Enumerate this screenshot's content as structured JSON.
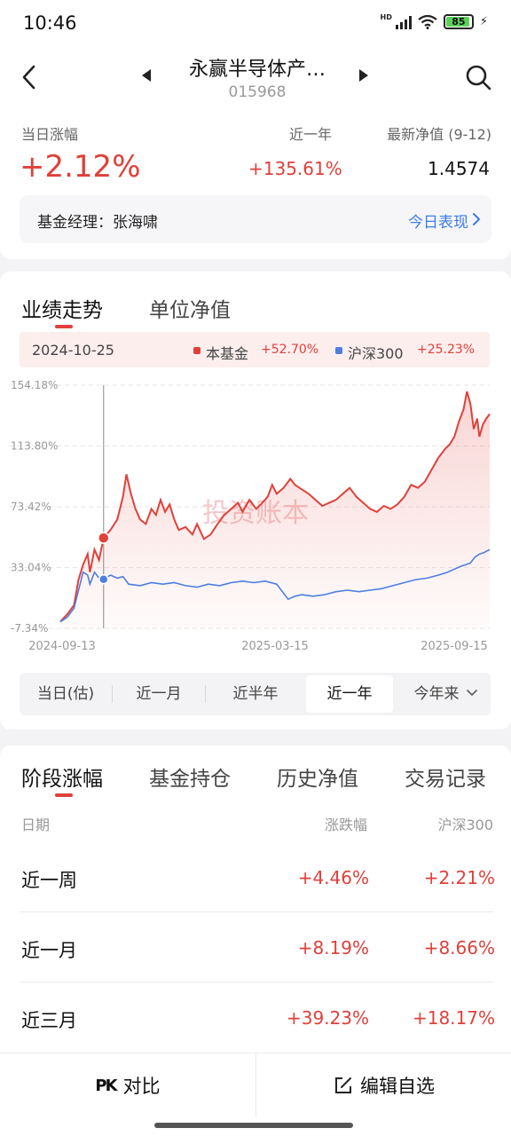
{
  "status_bar": {
    "time": "10:46",
    "battery": "85",
    "network": "HD"
  },
  "header": {
    "fund_name": "永赢半导体产…",
    "fund_code": "015968"
  },
  "summary": {
    "day_change_label": "当日涨幅",
    "day_change_value": "+2.12%",
    "year_label": "近一年",
    "year_value": "+135.61%",
    "nav_label": "最新净值 (9-12)",
    "nav_value": "1.4574"
  },
  "manager": {
    "label": "基金经理：张海啸",
    "link": "今日表现"
  },
  "chart_tabs": [
    {
      "label": "业绩走势",
      "active": true
    },
    {
      "label": "单位净值",
      "active": false
    }
  ],
  "legend": {
    "date": "2024-10-25",
    "items": [
      {
        "name": "本基金",
        "value": "+52.70%",
        "color": "#e0403a"
      },
      {
        "name": "沪深300",
        "value": "+25.23%",
        "color": "#4c7fe0"
      }
    ]
  },
  "watermark": "投资账本",
  "chart_data": {
    "type": "line",
    "y_ticks": [
      "154.18%",
      "113.80%",
      "73.42%",
      "33.04%",
      "-7.34%"
    ],
    "y_tick_values": [
      154.18,
      113.8,
      73.42,
      33.04,
      -7.34
    ],
    "x_ticks": [
      "2024-09-13",
      "2025-03-15",
      "2025-09-15"
    ],
    "ylim": [
      -7.34,
      154.18
    ],
    "grid": true,
    "cursor_date": "2024-10-25",
    "series": [
      {
        "name": "本基金",
        "color": "#e0403a",
        "points": [
          [
            0,
            -3
          ],
          [
            6,
            2
          ],
          [
            12,
            8
          ],
          [
            16,
            25
          ],
          [
            20,
            35
          ],
          [
            24,
            42
          ],
          [
            26,
            30
          ],
          [
            30,
            45
          ],
          [
            34,
            38
          ],
          [
            38,
            52.7
          ],
          [
            44,
            58
          ],
          [
            50,
            65
          ],
          [
            55,
            80
          ],
          [
            58,
            95
          ],
          [
            62,
            82
          ],
          [
            66,
            72
          ],
          [
            70,
            65
          ],
          [
            75,
            62
          ],
          [
            80,
            72
          ],
          [
            84,
            68
          ],
          [
            88,
            78
          ],
          [
            92,
            70
          ],
          [
            96,
            75
          ],
          [
            100,
            65
          ],
          [
            104,
            58
          ],
          [
            110,
            60
          ],
          [
            116,
            55
          ],
          [
            120,
            62
          ],
          [
            126,
            52
          ],
          [
            132,
            55
          ],
          [
            138,
            62
          ],
          [
            144,
            68
          ],
          [
            150,
            72
          ],
          [
            156,
            76
          ],
          [
            160,
            70
          ],
          [
            166,
            78
          ],
          [
            172,
            72
          ],
          [
            176,
            75
          ],
          [
            182,
            80
          ],
          [
            186,
            88
          ],
          [
            190,
            82
          ],
          [
            196,
            86
          ],
          [
            202,
            92
          ],
          [
            206,
            88
          ],
          [
            212,
            85
          ],
          [
            218,
            82
          ],
          [
            224,
            78
          ],
          [
            230,
            74
          ],
          [
            236,
            76
          ],
          [
            242,
            78
          ],
          [
            248,
            82
          ],
          [
            254,
            86
          ],
          [
            260,
            80
          ],
          [
            266,
            76
          ],
          [
            272,
            72
          ],
          [
            278,
            70
          ],
          [
            284,
            74
          ],
          [
            290,
            72
          ],
          [
            296,
            75
          ],
          [
            302,
            80
          ],
          [
            308,
            88
          ],
          [
            314,
            86
          ],
          [
            320,
            90
          ],
          [
            326,
            98
          ],
          [
            332,
            106
          ],
          [
            338,
            112
          ],
          [
            342,
            115
          ],
          [
            346,
            120
          ],
          [
            350,
            130
          ],
          [
            354,
            138
          ],
          [
            357,
            150
          ],
          [
            360,
            142
          ],
          [
            363,
            125
          ],
          [
            366,
            132
          ],
          [
            368,
            120
          ],
          [
            371,
            128
          ],
          [
            374,
            132
          ],
          [
            377,
            135
          ]
        ]
      },
      {
        "name": "沪深300",
        "color": "#4c7fe0",
        "points": [
          [
            0,
            -3
          ],
          [
            6,
            0
          ],
          [
            12,
            6
          ],
          [
            16,
            18
          ],
          [
            20,
            30
          ],
          [
            24,
            28
          ],
          [
            26,
            22
          ],
          [
            30,
            30
          ],
          [
            34,
            26
          ],
          [
            38,
            25.2
          ],
          [
            44,
            28
          ],
          [
            50,
            26
          ],
          [
            55,
            27
          ],
          [
            60,
            22
          ],
          [
            70,
            21
          ],
          [
            80,
            23
          ],
          [
            90,
            22
          ],
          [
            100,
            23
          ],
          [
            110,
            21
          ],
          [
            120,
            20
          ],
          [
            130,
            22
          ],
          [
            140,
            21
          ],
          [
            150,
            23
          ],
          [
            160,
            24
          ],
          [
            170,
            23
          ],
          [
            180,
            24
          ],
          [
            190,
            22
          ],
          [
            200,
            12
          ],
          [
            206,
            14
          ],
          [
            212,
            15
          ],
          [
            222,
            14
          ],
          [
            232,
            15
          ],
          [
            242,
            17
          ],
          [
            252,
            18
          ],
          [
            262,
            17
          ],
          [
            272,
            18
          ],
          [
            282,
            19
          ],
          [
            292,
            21
          ],
          [
            302,
            23
          ],
          [
            312,
            25
          ],
          [
            322,
            26
          ],
          [
            332,
            28
          ],
          [
            340,
            30
          ],
          [
            346,
            32
          ],
          [
            352,
            34
          ],
          [
            356,
            35
          ],
          [
            360,
            36
          ],
          [
            364,
            40
          ],
          [
            368,
            42
          ],
          [
            372,
            43
          ],
          [
            377,
            45
          ]
        ]
      }
    ]
  },
  "ranges": {
    "options": [
      "当日(估)",
      "近一月",
      "近半年",
      "近一年",
      "今年来"
    ],
    "selected": "近一年"
  },
  "perf_tabs": [
    {
      "label": "阶段涨幅",
      "active": true
    },
    {
      "label": "基金持仓",
      "active": false
    },
    {
      "label": "历史净值",
      "active": false
    },
    {
      "label": "交易记录",
      "active": false
    }
  ],
  "perf_table": {
    "headers": [
      "日期",
      "涨跌幅",
      "沪深300"
    ],
    "rows": [
      {
        "period": "近一周",
        "change": "+4.46%",
        "hs300": "+2.21%"
      },
      {
        "period": "近一月",
        "change": "+8.19%",
        "hs300": "+8.66%"
      },
      {
        "period": "近三月",
        "change": "+39.23%",
        "hs300": "+18.17%"
      }
    ]
  },
  "bottom_bar": {
    "compare_icon": "PK",
    "compare": "对比",
    "edit": "编辑自选"
  }
}
